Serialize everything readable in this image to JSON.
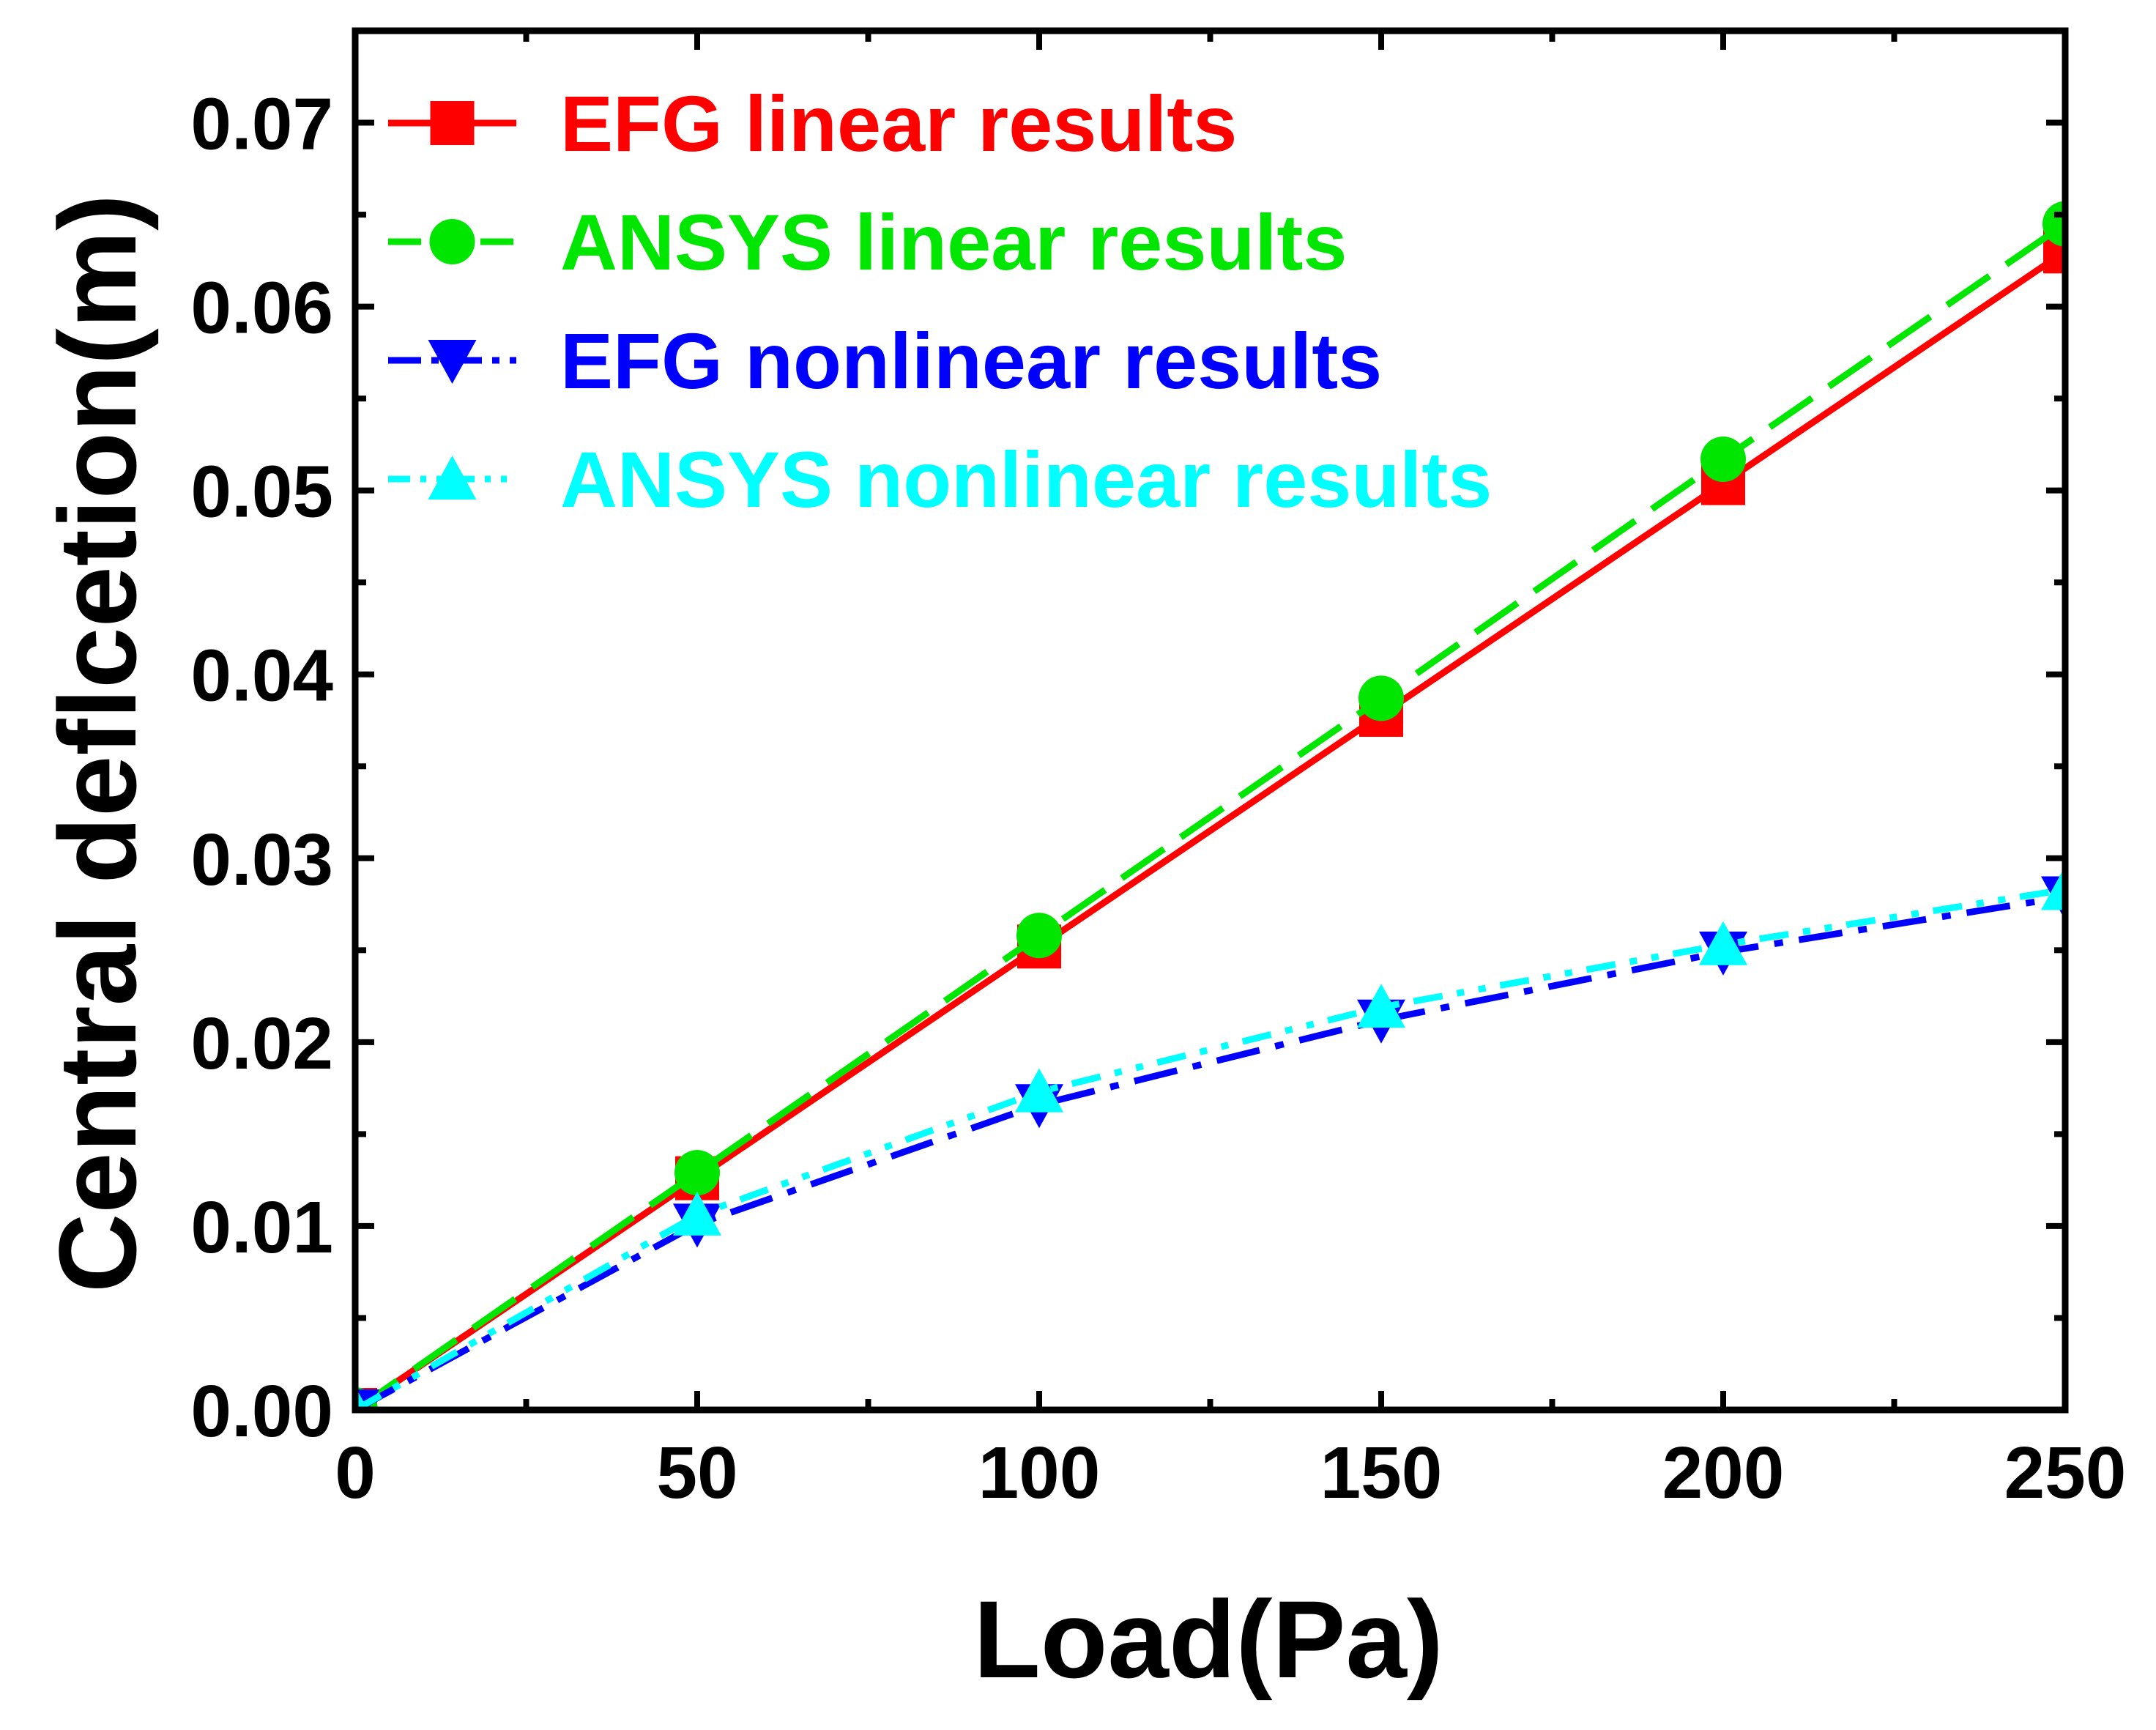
{
  "chart_data": {
    "type": "line",
    "xlabel": "Load(Pa)",
    "ylabel": "Central deflcetion(m)",
    "xlim": [
      0,
      250
    ],
    "ylim": [
      0,
      0.075
    ],
    "x_ticks": [
      "0",
      "50",
      "100",
      "150",
      "200",
      "250"
    ],
    "y_ticks": [
      "0.00",
      "0.01",
      "0.02",
      "0.03",
      "0.04",
      "0.05",
      "0.06",
      "0.07"
    ],
    "grid": false,
    "legend_position": "top-left",
    "x": [
      0,
      50,
      100,
      150,
      200,
      250
    ],
    "series": [
      {
        "name": "EFG linear results",
        "color": "#ff0000",
        "marker": "square",
        "line": "solid",
        "values": [
          0,
          0.0126,
          0.0252,
          0.0378,
          0.0504,
          0.063
        ]
      },
      {
        "name": "ANSYS linear results",
        "color": "#00e600",
        "marker": "circle",
        "line": "dashed",
        "values": [
          0,
          0.0129,
          0.0258,
          0.0387,
          0.0517,
          0.0645
        ]
      },
      {
        "name": "EFG nonlinear results",
        "color": "#0000ff",
        "marker": "triangle-down",
        "line": "dash-dot",
        "values": [
          0,
          0.0101,
          0.0166,
          0.0212,
          0.0249,
          0.0279
        ]
      },
      {
        "name": "ANSYS nonlinear results",
        "color": "#00ffff",
        "marker": "triangle-up",
        "line": "dash-dot-dot",
        "values": [
          0,
          0.0106,
          0.0173,
          0.0219,
          0.0253,
          0.0283
        ]
      }
    ]
  }
}
